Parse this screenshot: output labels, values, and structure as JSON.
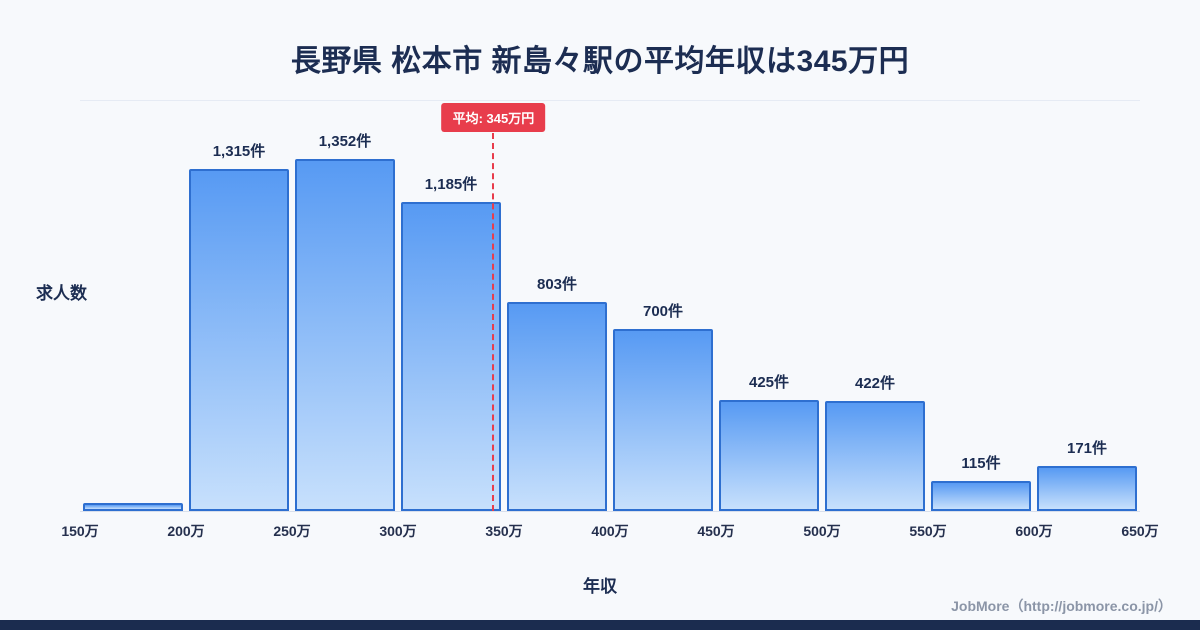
{
  "chart_data": {
    "type": "bar",
    "title": "長野県 松本市 新島々駅の平均年収は345万円",
    "xlabel": "年収",
    "ylabel": "求人数",
    "x_ticks": [
      "150万",
      "200万",
      "250万",
      "300万",
      "350万",
      "400万",
      "450万",
      "500万",
      "550万",
      "600万",
      "650万"
    ],
    "x_range_man_yen": [
      150,
      650
    ],
    "bins": [
      "150万-200万",
      "200万-250万",
      "250万-300万",
      "300万-350万",
      "350万-400万",
      "400万-450万",
      "450万-500万",
      "500万-550万",
      "550万-600万",
      "600万-650万"
    ],
    "values": [
      30,
      1315,
      1352,
      1185,
      803,
      700,
      425,
      422,
      115,
      171
    ],
    "value_labels": [
      "",
      "1,315件",
      "1,352件",
      "1,185件",
      "803件",
      "700件",
      "425件",
      "422件",
      "115件",
      "171件"
    ],
    "average": {
      "value": 345,
      "label": "平均: 345万円"
    },
    "grid": false,
    "legend": false,
    "unit_suffix": "件"
  },
  "footer": {
    "credit": "JobMore（http://jobmore.co.jp/）"
  },
  "colors": {
    "background": "#f7f9fc",
    "title": "#1c2d52",
    "bar_top": "#579af3",
    "bar_bottom": "#c7e0fc",
    "bar_border": "#2e6fd0",
    "average_line": "#e83d4c",
    "average_badge_bg": "#e83d4c",
    "average_badge_text": "#ffffff",
    "credit_text": "#8b95a7",
    "bottom_bar": "#1b2c4f"
  }
}
